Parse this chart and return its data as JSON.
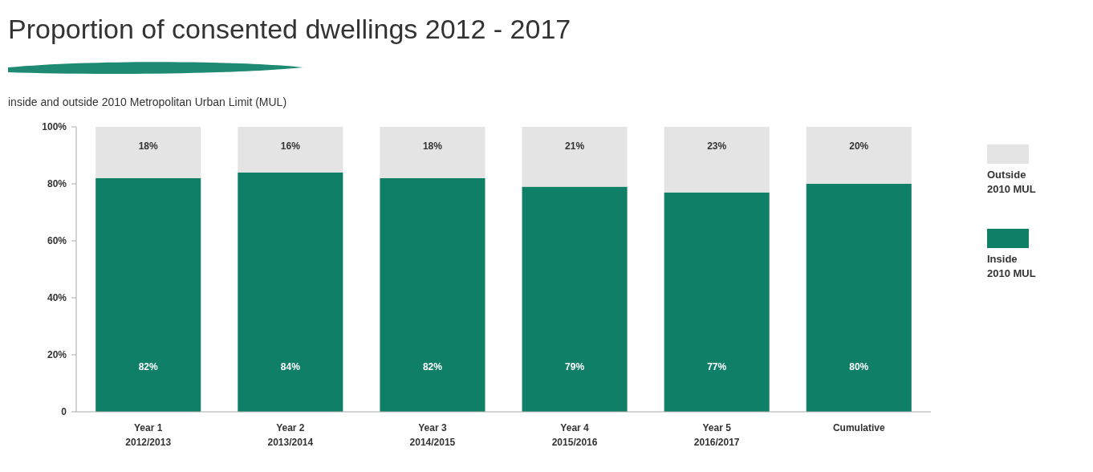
{
  "chart_data": {
    "type": "bar",
    "title": "Proportion of consented dwellings 2012 - 2017",
    "subtitle": "inside and outside 2010 Metropolitan Urban Limit (MUL)",
    "categories": [
      "Year 1\n2012/2013",
      "Year 2\n2013/2014",
      "Year 3\n2014/2015",
      "Year 4\n2015/2016",
      "Year 5\n2016/2017",
      "Cumulative"
    ],
    "stacked": true,
    "series": [
      {
        "name": "Inside\n2010 MUL",
        "color": "#0f7f68",
        "values": [
          82,
          84,
          82,
          79,
          77,
          80
        ],
        "value_labels": [
          "82%",
          "84%",
          "82%",
          "79%",
          "77%",
          "80%"
        ]
      },
      {
        "name": "Outside\n2010 MUL",
        "color": "#e4e4e4",
        "values": [
          18,
          16,
          18,
          21,
          23,
          20
        ],
        "value_labels": [
          "18%",
          "16%",
          "18%",
          "21%",
          "23%",
          "20%"
        ]
      }
    ],
    "ylim": [
      0,
      100
    ],
    "yticks": [
      {
        "value": 0,
        "label": "0"
      },
      {
        "value": 20,
        "label": "20%"
      },
      {
        "value": 40,
        "label": "40%"
      },
      {
        "value": 60,
        "label": "60%"
      },
      {
        "value": 80,
        "label": "80%"
      },
      {
        "value": 100,
        "label": "100%"
      }
    ],
    "grid": false,
    "legend": "right"
  }
}
